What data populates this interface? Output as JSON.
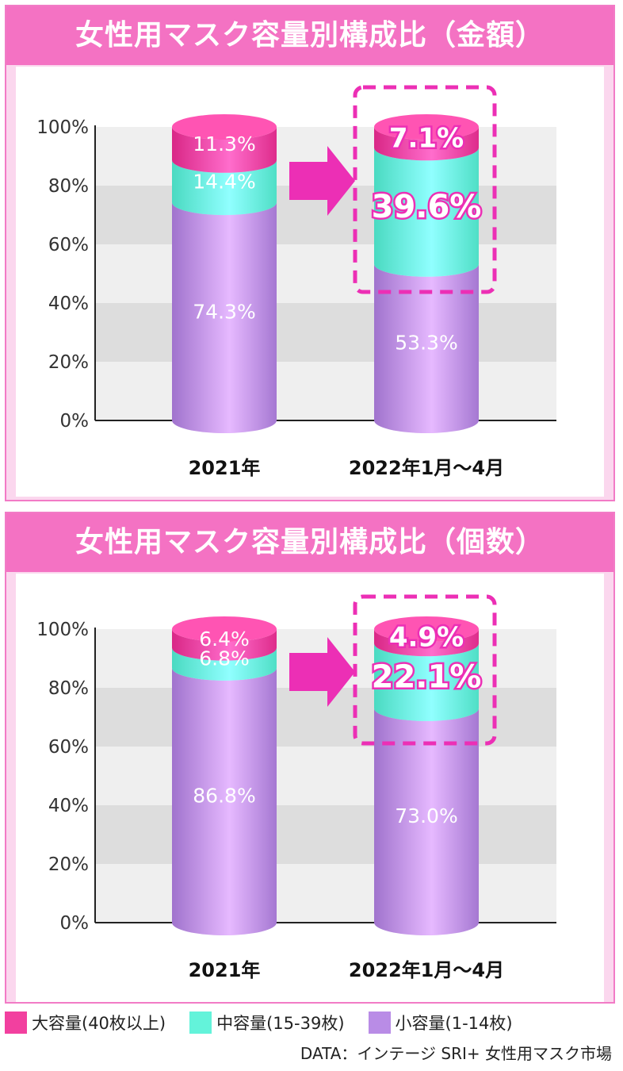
{
  "colors": {
    "large": "#f2409f",
    "medium": "#63f3da",
    "small": "#b98ce6",
    "highlight": "#ec2fb5"
  },
  "legend": [
    {
      "key": "large",
      "label": "大容量(40枚以上)"
    },
    {
      "key": "medium",
      "label": "中容量(15-39枚)"
    },
    {
      "key": "small",
      "label": "小容量(1-14枚)"
    }
  ],
  "source": "DATA：インテージ SRI+ 女性用マスク市場",
  "chart_data": [
    {
      "type": "bar",
      "stacked": true,
      "title": "女性用マスク容量別構成比（金額）",
      "categories": [
        "2021年",
        "2022年1月～4月"
      ],
      "yticks": [
        "0%",
        "20%",
        "40%",
        "60%",
        "80%",
        "100%"
      ],
      "ylim": [
        0,
        100
      ],
      "series": [
        {
          "name": "小容量(1-14枚)",
          "key": "small",
          "values": [
            74.3,
            53.3
          ],
          "labels": [
            "74.3%",
            "53.3%"
          ]
        },
        {
          "name": "中容量(15-39枚)",
          "key": "medium",
          "values": [
            14.4,
            39.6
          ],
          "labels": [
            "14.4%",
            "39.6%"
          ]
        },
        {
          "name": "大容量(40枚以上)",
          "key": "large",
          "values": [
            11.3,
            7.1
          ],
          "labels": [
            "11.3%",
            "7.1%"
          ]
        }
      ],
      "highlight": {
        "category": "2022年1月～4月",
        "series": [
          "中容量(15-39枚)",
          "大容量(40枚以上)"
        ]
      }
    },
    {
      "type": "bar",
      "stacked": true,
      "title": "女性用マスク容量別構成比（個数）",
      "categories": [
        "2021年",
        "2022年1月～4月"
      ],
      "yticks": [
        "0%",
        "20%",
        "40%",
        "60%",
        "80%",
        "100%"
      ],
      "ylim": [
        0,
        100
      ],
      "series": [
        {
          "name": "小容量(1-14枚)",
          "key": "small",
          "values": [
            86.8,
            73.0
          ],
          "labels": [
            "86.8%",
            "73.0%"
          ]
        },
        {
          "name": "中容量(15-39枚)",
          "key": "medium",
          "values": [
            6.8,
            22.1
          ],
          "labels": [
            "6.8%",
            "22.1%"
          ]
        },
        {
          "name": "大容量(40枚以上)",
          "key": "large",
          "values": [
            6.4,
            4.9
          ],
          "labels": [
            "6.4%",
            "4.9%"
          ]
        }
      ],
      "highlight": {
        "category": "2022年1月～4月",
        "series": [
          "中容量(15-39枚)",
          "大容量(40枚以上)"
        ]
      }
    }
  ]
}
